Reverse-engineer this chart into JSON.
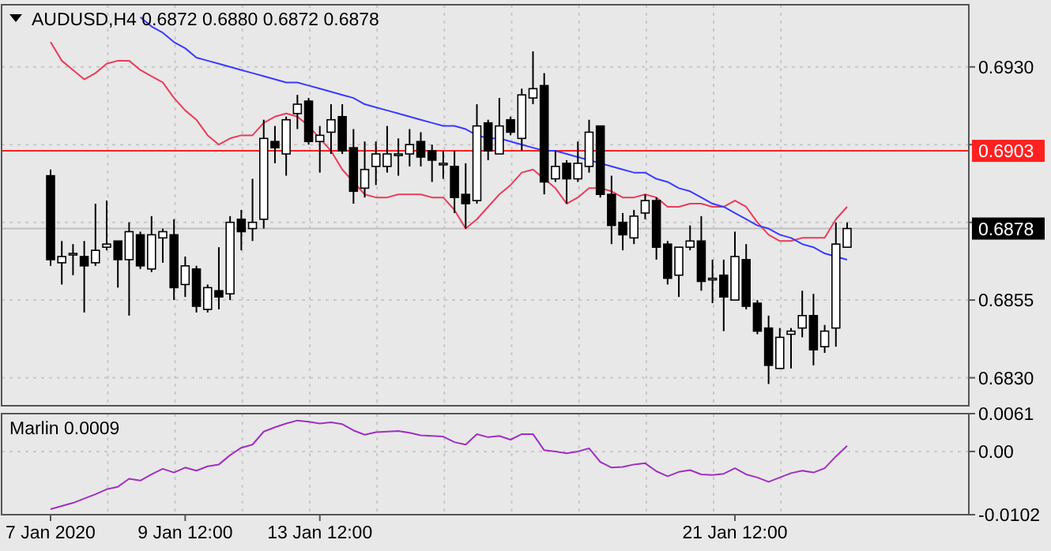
{
  "chart_data": [
    {
      "type": "candlestick",
      "title": "AUDUSD,H4  0.6872 0.6880 0.6872 0.6878",
      "tick_labels": "y",
      "grid": true,
      "categories": [
        null,
        null,
        null,
        null,
        null,
        null,
        null,
        null,
        null,
        null,
        null,
        null,
        null,
        null,
        null,
        null,
        null,
        null,
        null,
        null,
        null,
        null,
        null,
        null,
        null,
        null,
        null,
        null,
        null,
        null,
        null,
        null,
        null,
        null,
        null,
        null,
        null,
        null,
        null,
        null,
        null,
        null,
        null,
        null,
        null,
        null,
        null,
        null,
        null,
        null,
        null,
        null,
        null,
        null,
        null,
        null,
        null,
        null,
        null,
        null,
        null,
        null,
        null,
        null,
        null,
        null,
        null,
        null,
        null,
        null,
        null,
        null
      ],
      "ylim": [
        0.6821,
        0.695
      ],
      "yticks": [
        {
          "value": 0.693,
          "label": "0.6930"
        },
        {
          "value": 0.6905,
          "label": null
        },
        {
          "value": 0.688,
          "label": null
        },
        0.6855,
        {
          "value": 0.683,
          "label": "0.6830"
        }
      ],
      "ohlc": [
        [
          0.6895,
          0.6897,
          0.6866,
          0.6868
        ],
        [
          0.6867,
          0.6874,
          0.686,
          0.6869
        ],
        [
          0.687,
          0.6873,
          0.6863,
          0.687
        ],
        [
          0.6869,
          0.6874,
          0.6851,
          0.6866
        ],
        [
          0.6867,
          0.6886,
          0.6866,
          0.6871
        ],
        [
          0.6872,
          0.6887,
          0.6871,
          0.6873
        ],
        [
          0.6874,
          0.6874,
          0.6859,
          0.6868
        ],
        [
          0.6868,
          0.688,
          0.685,
          0.6877
        ],
        [
          0.6876,
          0.6877,
          0.6865,
          0.6866
        ],
        [
          0.6865,
          0.6882,
          0.6864,
          0.6876
        ],
        [
          0.6875,
          0.6878,
          0.6867,
          0.6877
        ],
        [
          0.6876,
          0.6881,
          0.6855,
          0.6859
        ],
        [
          0.686,
          0.6869,
          0.6856,
          0.6866
        ],
        [
          0.6865,
          0.6866,
          0.6851,
          0.6853
        ],
        [
          0.6852,
          0.686,
          0.6851,
          0.6859
        ],
        [
          0.6858,
          0.6872,
          0.6852,
          0.6856
        ],
        [
          0.6857,
          0.6882,
          0.6855,
          0.688
        ],
        [
          0.6881,
          0.6884,
          0.6871,
          0.6877
        ],
        [
          0.6878,
          0.6894,
          0.6874,
          0.688
        ],
        [
          0.6881,
          0.6913,
          0.6878,
          0.6907
        ],
        [
          0.6906,
          0.6911,
          0.6899,
          0.6904
        ],
        [
          0.6902,
          0.6914,
          0.6895,
          0.6913
        ],
        [
          0.6915,
          0.6921,
          0.691,
          0.6918
        ],
        [
          0.6919,
          0.692,
          0.6905,
          0.6906
        ],
        [
          0.6906,
          0.6911,
          0.6896,
          0.6908
        ],
        [
          0.6909,
          0.6918,
          0.6902,
          0.6913
        ],
        [
          0.6914,
          0.6918,
          0.6902,
          0.6903
        ],
        [
          0.6904,
          0.691,
          0.6886,
          0.689
        ],
        [
          0.6891,
          0.6906,
          0.6888,
          0.6897
        ],
        [
          0.6898,
          0.6906,
          0.6892,
          0.6902
        ],
        [
          0.6898,
          0.6911,
          0.6896,
          0.6902
        ],
        [
          0.6902,
          0.6907,
          0.6895,
          0.6902
        ],
        [
          0.6902,
          0.691,
          0.6898,
          0.6905
        ],
        [
          0.6906,
          0.6909,
          0.6898,
          0.6901
        ],
        [
          0.6903,
          0.6905,
          0.6893,
          0.69
        ],
        [
          0.6899,
          0.6903,
          0.6894,
          0.6899
        ],
        [
          0.6898,
          0.6903,
          0.6883,
          0.6888
        ],
        [
          0.6889,
          0.6899,
          0.6878,
          0.6886
        ],
        [
          0.6887,
          0.6918,
          0.6886,
          0.6911
        ],
        [
          0.6912,
          0.6913,
          0.69,
          0.6903
        ],
        [
          0.6902,
          0.692,
          0.6902,
          0.6911
        ],
        [
          0.6913,
          0.6914,
          0.6908,
          0.6909
        ],
        [
          0.6907,
          0.6923,
          0.6903,
          0.6921
        ],
        [
          0.692,
          0.6935,
          0.6918,
          0.6923
        ],
        [
          0.6924,
          0.6928,
          0.6889,
          0.6893
        ],
        [
          0.6894,
          0.6903,
          0.6893,
          0.6898
        ],
        [
          0.6899,
          0.69,
          0.6886,
          0.6894
        ],
        [
          0.6894,
          0.6906,
          0.6893,
          0.6899
        ],
        [
          0.6898,
          0.6913,
          0.6896,
          0.6909
        ],
        [
          0.6911,
          0.6911,
          0.6888,
          0.6889
        ],
        [
          0.6889,
          0.6895,
          0.6873,
          0.6879
        ],
        [
          0.688,
          0.6883,
          0.6871,
          0.6876
        ],
        [
          0.6875,
          0.6884,
          0.6873,
          0.6882
        ],
        [
          0.6883,
          0.6889,
          0.6881,
          0.6887
        ],
        [
          0.6887,
          0.6888,
          0.6868,
          0.6872
        ],
        [
          0.6873,
          0.6874,
          0.686,
          0.6862
        ],
        [
          0.6863,
          0.6872,
          0.6856,
          0.6872
        ],
        [
          0.6872,
          0.6879,
          0.6871,
          0.6874
        ],
        [
          0.6874,
          0.6882,
          0.6858,
          0.6861
        ],
        [
          0.6862,
          0.6868,
          0.6854,
          0.6862
        ],
        [
          0.6863,
          0.6868,
          0.6845,
          0.6856
        ],
        [
          0.6855,
          0.6877,
          0.6855,
          0.6869
        ],
        [
          0.6868,
          0.6873,
          0.6852,
          0.6853
        ],
        [
          0.6854,
          0.6855,
          0.6844,
          0.6845
        ],
        [
          0.6846,
          0.685,
          0.6828,
          0.6834
        ],
        [
          0.6833,
          0.6846,
          0.6833,
          0.6843
        ],
        [
          0.6844,
          0.6846,
          0.6833,
          0.6845
        ],
        [
          0.6846,
          0.6858,
          0.6843,
          0.685
        ],
        [
          0.685,
          0.6857,
          0.6834,
          0.6839
        ],
        [
          0.684,
          0.6847,
          0.6838,
          0.6845
        ],
        [
          0.6846,
          0.688,
          0.684,
          0.6873
        ],
        [
          0.6872,
          0.688,
          0.6872,
          0.6878
        ]
      ],
      "series": [
        {
          "type": "line",
          "color": "#e83c5a",
          "values": [
            0.6938,
            0.6932,
            0.6929,
            0.6926,
            0.6928,
            0.6931,
            0.6932,
            0.6932,
            0.6929,
            0.6927,
            0.6925,
            0.692,
            0.6916,
            0.6913,
            0.6908,
            0.6905,
            0.6907,
            0.6908,
            0.6908,
            0.6912,
            0.6914,
            0.6915,
            0.6914,
            0.6911,
            0.6907,
            0.6903,
            0.6897,
            0.6893,
            0.6889,
            0.6888,
            0.6888,
            0.6889,
            0.6889,
            0.6889,
            0.6888,
            0.6888,
            0.6884,
            0.6878,
            0.6881,
            0.6885,
            0.6889,
            0.6892,
            0.6896,
            0.6897,
            0.6894,
            0.6891,
            0.6886,
            0.6888,
            0.6891,
            0.6891,
            0.689,
            0.6888,
            0.6888,
            0.6889,
            0.6888,
            0.6885,
            0.6885,
            0.6886,
            0.6886,
            0.6885,
            0.6885,
            0.6887,
            0.6885,
            0.688,
            0.6876,
            0.6874,
            0.6874,
            0.6875,
            0.6875,
            0.6875,
            0.6881,
            0.6885
          ]
        },
        {
          "type": "line",
          "color": "#3a3aff",
          "values": [
            null,
            null,
            null,
            null,
            null,
            null,
            null,
            null,
            0.6946,
            0.6943,
            0.6941,
            0.6938,
            0.6936,
            0.6933,
            0.6932,
            0.6931,
            0.693,
            0.6929,
            0.6928,
            0.6927,
            0.6926,
            0.6925,
            0.6925,
            0.6924,
            0.6923,
            0.6922,
            0.6921,
            0.692,
            0.6918,
            0.6917,
            0.6916,
            0.6915,
            0.6914,
            0.6913,
            0.6912,
            0.6911,
            0.6911,
            0.691,
            0.6908,
            0.6907,
            0.6907,
            0.6906,
            0.6905,
            0.6904,
            0.6903,
            0.6903,
            0.6902,
            0.6901,
            0.69,
            0.6899,
            0.6898,
            0.6897,
            0.6896,
            0.6896,
            0.6894,
            0.6893,
            0.6891,
            0.689,
            0.6888,
            0.6886,
            0.6885,
            0.6883,
            0.6881,
            0.6879,
            0.6878,
            0.6876,
            0.6875,
            0.6873,
            0.6872,
            0.687,
            0.6869,
            0.6868
          ]
        }
      ],
      "ref_lines": [
        {
          "axis": "y",
          "value": 0.6903,
          "label": "0.6903",
          "color": "#ff2020"
        },
        {
          "axis": "y",
          "value": 0.6878,
          "label": "0.6878",
          "color": "#c0c0c0"
        }
      ]
    },
    {
      "type": "line",
      "title": "Marlin 0.0009",
      "grid": true,
      "categories": [
        "7 Jan 2020",
        null,
        null,
        null,
        null,
        null,
        null,
        null,
        null,
        null,
        null,
        null,
        "9 Jan 12:00",
        null,
        null,
        null,
        null,
        null,
        null,
        null,
        null,
        null,
        null,
        null,
        "13 Jan 12:00",
        null,
        null,
        null,
        null,
        null,
        null,
        null,
        null,
        null,
        null,
        null,
        null,
        null,
        null,
        null,
        null,
        null,
        null,
        null,
        null,
        null,
        null,
        null,
        null,
        null,
        null,
        null,
        null,
        null,
        null,
        null,
        null,
        null,
        null,
        null,
        null,
        "21 Jan 12:00",
        null,
        null,
        null,
        null,
        null,
        null,
        null,
        null,
        null,
        null
      ],
      "ylim": [
        -0.0102,
        0.0061
      ],
      "yticks": [
        0.0061,
        {
          "value": 0,
          "label": "0.00"
        },
        -0.0102
      ],
      "series": [
        {
          "color": "#a030c0",
          "values": [
            -0.0093,
            -0.0088,
            -0.0083,
            -0.0076,
            -0.0069,
            -0.0061,
            -0.0057,
            -0.0044,
            -0.0047,
            -0.0037,
            -0.0028,
            -0.0034,
            -0.0026,
            -0.0031,
            -0.0024,
            -0.0021,
            -0.0006,
            0.0006,
            0.0011,
            0.0032,
            0.0039,
            0.0045,
            0.005,
            0.0048,
            0.0045,
            0.0047,
            0.0044,
            0.0034,
            0.0027,
            0.0031,
            0.0032,
            0.0033,
            0.003,
            0.0026,
            0.0025,
            0.0024,
            0.0015,
            0.0011,
            0.0028,
            0.0023,
            0.0025,
            0.0019,
            0.0028,
            0.0028,
            0.0002,
            0.0,
            -0.0003,
            0.0,
            0.0005,
            -0.0017,
            -0.0026,
            -0.0025,
            -0.0021,
            -0.0019,
            -0.0032,
            -0.004,
            -0.0033,
            -0.003,
            -0.0037,
            -0.0038,
            -0.0036,
            -0.0027,
            -0.0037,
            -0.0042,
            -0.0049,
            -0.0042,
            -0.0035,
            -0.0031,
            -0.0034,
            -0.0027,
            -0.0008,
            0.0009
          ]
        }
      ]
    }
  ]
}
